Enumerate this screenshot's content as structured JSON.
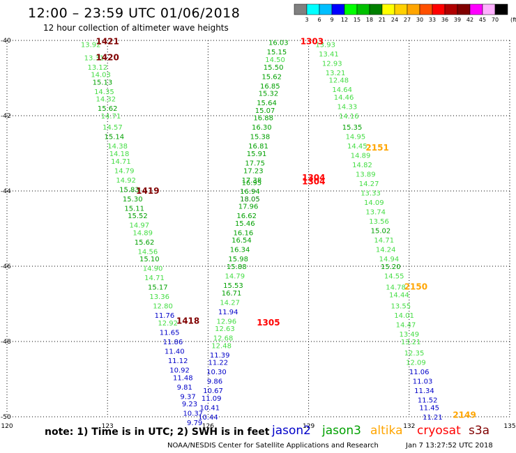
{
  "header": {
    "title": "12:00 – 23:59 UTC 01/06/2018",
    "subtitle": "12 hour collection of altimeter wave heights"
  },
  "colorbar": {
    "levels": [
      "3",
      "6",
      "9",
      "12",
      "15",
      "18",
      "21",
      "24",
      "27",
      "30",
      "33",
      "36",
      "39",
      "42",
      "45",
      "70"
    ],
    "unit": "(ft)",
    "colors": [
      "#808080",
      "#00ffff",
      "#00bfff",
      "#0000ff",
      "#00ff00",
      "#00c000",
      "#008000",
      "#ffff00",
      "#ffd000",
      "#ffa500",
      "#ff5000",
      "#ff0000",
      "#b00000",
      "#800000",
      "#ff00ff",
      "#ffb0ff",
      "#000000"
    ]
  },
  "legend": [
    {
      "name": "jason2",
      "color": "#0000c8"
    },
    {
      "name": "jason3",
      "color": "#00a000"
    },
    {
      "name": "altika",
      "color": "#ffa500"
    },
    {
      "name": "cryosat",
      "color": "#ff0000"
    },
    {
      "name": "s3a",
      "color": "#800000"
    }
  ],
  "footer": {
    "note": "note:  1) Time is in UTC;  2) SWH is in feet",
    "credit": "NOAA/NESDIS Center for Satellite Applications and Research",
    "timestamp": "Jan  7 13:27:52 UTC 2018"
  },
  "chart_data": {
    "type": "scatter",
    "title": "12:00 – 23:59 UTC 01/06/2018",
    "xlim": [
      120,
      135
    ],
    "ylim": [
      -50,
      -40
    ],
    "xticks": [
      120,
      123,
      126,
      129,
      132,
      135
    ],
    "yticks": [
      -40,
      -42,
      -44,
      -46,
      -48,
      -50
    ],
    "grid": true,
    "point_colors": {
      "3": "#808080",
      "6": "#00e0e0",
      "9": "#00bfff",
      "12": "#0000c8",
      "15": "#44dd44",
      "18": "#00a000",
      "21": "#008000"
    },
    "time_labels": [
      {
        "text": "1421",
        "lon": 123.0,
        "lat": -40.03,
        "sat": "s3a"
      },
      {
        "text": "1420",
        "lon": 123.0,
        "lat": -40.45,
        "sat": "s3a"
      },
      {
        "text": "1419",
        "lon": 124.2,
        "lat": -44.0,
        "sat": "s3a"
      },
      {
        "text": "1418",
        "lon": 125.4,
        "lat": -47.45,
        "sat": "s3a"
      },
      {
        "text": "1303",
        "lon": 129.1,
        "lat": -40.03,
        "sat": "cryosat"
      },
      {
        "text": "1304",
        "lon": 129.15,
        "lat": -43.65,
        "sat": "cryosat"
      },
      {
        "text": "1304",
        "lon": 129.15,
        "lat": -43.75,
        "sat": "cryosat"
      },
      {
        "text": "1305",
        "lon": 127.8,
        "lat": -47.5,
        "sat": "cryosat"
      },
      {
        "text": "2151",
        "lon": 131.05,
        "lat": -42.85,
        "sat": "altika"
      },
      {
        "text": "2150",
        "lon": 132.2,
        "lat": -46.55,
        "sat": "altika"
      },
      {
        "text": "2149",
        "lon": 133.65,
        "lat": -49.95,
        "sat": "altika"
      }
    ],
    "series": [
      {
        "name": "s3a",
        "points": [
          {
            "lon": 122.5,
            "lat": -40.1,
            "v": "13.92"
          },
          {
            "lon": 122.6,
            "lat": -40.45,
            "v": "13.31"
          },
          {
            "lon": 122.7,
            "lat": -40.7,
            "v": "13.12"
          },
          {
            "lon": 122.8,
            "lat": -40.9,
            "v": "14.03"
          },
          {
            "lon": 122.85,
            "lat": -41.1,
            "v": "15.13"
          },
          {
            "lon": 122.9,
            "lat": -41.35,
            "v": "14.35"
          },
          {
            "lon": 122.95,
            "lat": -41.55,
            "v": "14.32"
          },
          {
            "lon": 123.0,
            "lat": -41.8,
            "v": "15.62"
          },
          {
            "lon": 123.1,
            "lat": -42.0,
            "v": "14.71"
          },
          {
            "lon": 123.15,
            "lat": -42.3,
            "v": "14.57"
          },
          {
            "lon": 123.2,
            "lat": -42.55,
            "v": "15.14"
          },
          {
            "lon": 123.3,
            "lat": -42.8,
            "v": "14.38"
          },
          {
            "lon": 123.35,
            "lat": -43.0,
            "v": "14.18"
          },
          {
            "lon": 123.4,
            "lat": -43.2,
            "v": "14.71"
          },
          {
            "lon": 123.5,
            "lat": -43.45,
            "v": "14.79"
          },
          {
            "lon": 123.55,
            "lat": -43.7,
            "v": "14.92"
          },
          {
            "lon": 123.65,
            "lat": -43.95,
            "v": "15.83"
          },
          {
            "lon": 123.75,
            "lat": -44.2,
            "v": "15.30"
          },
          {
            "lon": 123.8,
            "lat": -44.45,
            "v": "15.11"
          },
          {
            "lon": 123.9,
            "lat": -44.65,
            "v": "15.52"
          },
          {
            "lon": 123.95,
            "lat": -44.9,
            "v": "14.97"
          },
          {
            "lon": 124.05,
            "lat": -45.1,
            "v": "14.89"
          },
          {
            "lon": 124.1,
            "lat": -45.35,
            "v": "15.62"
          },
          {
            "lon": 124.2,
            "lat": -45.6,
            "v": "14.56"
          },
          {
            "lon": 124.25,
            "lat": -45.8,
            "v": "15.10"
          },
          {
            "lon": 124.35,
            "lat": -46.05,
            "v": "14.90"
          },
          {
            "lon": 124.4,
            "lat": -46.3,
            "v": "14.71"
          },
          {
            "lon": 124.5,
            "lat": -46.55,
            "v": "15.17"
          },
          {
            "lon": 124.55,
            "lat": -46.8,
            "v": "13.36"
          },
          {
            "lon": 124.65,
            "lat": -47.05,
            "v": "12.80"
          },
          {
            "lon": 124.7,
            "lat": -47.3,
            "v": "11.76"
          },
          {
            "lon": 124.8,
            "lat": -47.5,
            "v": "12.92"
          },
          {
            "lon": 124.85,
            "lat": -47.75,
            "v": "11.65"
          },
          {
            "lon": 124.95,
            "lat": -48.0,
            "v": "11.86"
          },
          {
            "lon": 125.0,
            "lat": -48.25,
            "v": "11.40"
          },
          {
            "lon": 125.1,
            "lat": -48.5,
            "v": "11.12"
          },
          {
            "lon": 125.15,
            "lat": -48.75,
            "v": "10.92"
          },
          {
            "lon": 125.25,
            "lat": -48.95,
            "v": "11.48"
          },
          {
            "lon": 125.3,
            "lat": -49.2,
            "v": "9.81"
          },
          {
            "lon": 125.4,
            "lat": -49.45,
            "v": "9.37"
          },
          {
            "lon": 125.45,
            "lat": -49.65,
            "v": "9.23"
          },
          {
            "lon": 125.55,
            "lat": -49.9,
            "v": "10.37"
          },
          {
            "lon": 125.6,
            "lat": -50.15,
            "v": "9.79"
          }
        ]
      },
      {
        "name": "cryosat",
        "points": [
          {
            "lon": 128.1,
            "lat": -40.05,
            "v": "16.03"
          },
          {
            "lon": 128.05,
            "lat": -40.3,
            "v": "15.15"
          },
          {
            "lon": 128.0,
            "lat": -40.5,
            "v": "14.50"
          },
          {
            "lon": 127.95,
            "lat": -40.7,
            "v": "15.50"
          },
          {
            "lon": 127.9,
            "lat": -40.95,
            "v": "15.62"
          },
          {
            "lon": 127.85,
            "lat": -41.2,
            "v": "16.85"
          },
          {
            "lon": 127.8,
            "lat": -41.4,
            "v": "15.32"
          },
          {
            "lon": 127.75,
            "lat": -41.65,
            "v": "15.64"
          },
          {
            "lon": 127.7,
            "lat": -41.85,
            "v": "15.07"
          },
          {
            "lon": 127.65,
            "lat": -42.05,
            "v": "16.88"
          },
          {
            "lon": 127.6,
            "lat": -42.3,
            "v": "16.30"
          },
          {
            "lon": 127.55,
            "lat": -42.55,
            "v": "15.38"
          },
          {
            "lon": 127.5,
            "lat": -42.8,
            "v": "16.81"
          },
          {
            "lon": 127.45,
            "lat": -43.0,
            "v": "15.91"
          },
          {
            "lon": 127.4,
            "lat": -43.25,
            "v": "17.75"
          },
          {
            "lon": 127.35,
            "lat": -43.45,
            "v": "17.23"
          },
          {
            "lon": 127.3,
            "lat": -43.7,
            "v": "17.38"
          },
          {
            "lon": 127.3,
            "lat": -43.77,
            "v": "16.95"
          },
          {
            "lon": 127.25,
            "lat": -44.0,
            "v": "16.94"
          },
          {
            "lon": 127.25,
            "lat": -44.2,
            "v": "18.05"
          },
          {
            "lon": 127.2,
            "lat": -44.4,
            "v": "17.96"
          },
          {
            "lon": 127.15,
            "lat": -44.65,
            "v": "16.62"
          },
          {
            "lon": 127.1,
            "lat": -44.85,
            "v": "15.46"
          },
          {
            "lon": 127.05,
            "lat": -45.1,
            "v": "16.16"
          },
          {
            "lon": 127.0,
            "lat": -45.3,
            "v": "16.54"
          },
          {
            "lon": 126.95,
            "lat": -45.55,
            "v": "16.34"
          },
          {
            "lon": 126.9,
            "lat": -45.8,
            "v": "15.98"
          },
          {
            "lon": 126.85,
            "lat": -46.0,
            "v": "15.88"
          },
          {
            "lon": 126.8,
            "lat": -46.25,
            "v": "14.79"
          },
          {
            "lon": 126.75,
            "lat": -46.5,
            "v": "15.53"
          },
          {
            "lon": 126.7,
            "lat": -46.7,
            "v": "16.71"
          },
          {
            "lon": 126.65,
            "lat": -46.95,
            "v": "14.27"
          },
          {
            "lon": 126.6,
            "lat": -47.2,
            "v": "11.94"
          },
          {
            "lon": 126.55,
            "lat": -47.45,
            "v": "12.96"
          },
          {
            "lon": 126.5,
            "lat": -47.65,
            "v": "12.63"
          },
          {
            "lon": 126.45,
            "lat": -47.9,
            "v": "12.68"
          },
          {
            "lon": 126.4,
            "lat": -48.1,
            "v": "12.48"
          },
          {
            "lon": 126.35,
            "lat": -48.35,
            "v": "11.39"
          },
          {
            "lon": 126.3,
            "lat": -48.55,
            "v": "11.22"
          },
          {
            "lon": 126.25,
            "lat": -48.8,
            "v": "10.30"
          },
          {
            "lon": 126.2,
            "lat": -49.05,
            "v": "9.86"
          },
          {
            "lon": 126.15,
            "lat": -49.3,
            "v": "10.67"
          },
          {
            "lon": 126.1,
            "lat": -49.5,
            "v": "11.09"
          },
          {
            "lon": 126.05,
            "lat": -49.75,
            "v": "10.41"
          },
          {
            "lon": 126.0,
            "lat": -50.0,
            "v": "10.44"
          }
        ]
      },
      {
        "name": "altika",
        "points": [
          {
            "lon": 129.5,
            "lat": -40.1,
            "v": "13.93"
          },
          {
            "lon": 129.6,
            "lat": -40.35,
            "v": "13.41"
          },
          {
            "lon": 129.7,
            "lat": -40.6,
            "v": "12.93"
          },
          {
            "lon": 129.8,
            "lat": -40.85,
            "v": "13.21"
          },
          {
            "lon": 129.9,
            "lat": -41.05,
            "v": "12.48"
          },
          {
            "lon": 130.0,
            "lat": -41.3,
            "v": "14.64"
          },
          {
            "lon": 130.05,
            "lat": -41.5,
            "v": "14.46"
          },
          {
            "lon": 130.15,
            "lat": -41.75,
            "v": "14.33"
          },
          {
            "lon": 130.2,
            "lat": -42.0,
            "v": "14.16"
          },
          {
            "lon": 130.3,
            "lat": -42.3,
            "v": "15.35"
          },
          {
            "lon": 130.4,
            "lat": -42.55,
            "v": "14.95"
          },
          {
            "lon": 130.45,
            "lat": -42.8,
            "v": "14.45"
          },
          {
            "lon": 130.55,
            "lat": -43.05,
            "v": "14.89"
          },
          {
            "lon": 130.6,
            "lat": -43.3,
            "v": "14.82"
          },
          {
            "lon": 130.7,
            "lat": -43.55,
            "v": "13.89"
          },
          {
            "lon": 130.8,
            "lat": -43.8,
            "v": "14.27"
          },
          {
            "lon": 130.85,
            "lat": -44.05,
            "v": "13.33"
          },
          {
            "lon": 130.95,
            "lat": -44.3,
            "v": "14.09"
          },
          {
            "lon": 131.0,
            "lat": -44.55,
            "v": "13.74"
          },
          {
            "lon": 131.1,
            "lat": -44.8,
            "v": "13.56"
          },
          {
            "lon": 131.15,
            "lat": -45.05,
            "v": "15.02"
          },
          {
            "lon": 131.25,
            "lat": -45.3,
            "v": "14.71"
          },
          {
            "lon": 131.3,
            "lat": -45.55,
            "v": "14.24"
          },
          {
            "lon": 131.4,
            "lat": -45.8,
            "v": "14.94"
          },
          {
            "lon": 131.45,
            "lat": -46.0,
            "v": "15.20"
          },
          {
            "lon": 131.55,
            "lat": -46.25,
            "v": "14.55"
          },
          {
            "lon": 131.6,
            "lat": -46.55,
            "v": "14.78"
          },
          {
            "lon": 131.7,
            "lat": -46.75,
            "v": "14.44"
          },
          {
            "lon": 131.75,
            "lat": -47.05,
            "v": "13.55"
          },
          {
            "lon": 131.85,
            "lat": -47.3,
            "v": "14.01"
          },
          {
            "lon": 131.9,
            "lat": -47.55,
            "v": "14.47"
          },
          {
            "lon": 132.0,
            "lat": -47.8,
            "v": "13.49"
          },
          {
            "lon": 132.05,
            "lat": -48.0,
            "v": "13.21"
          },
          {
            "lon": 132.15,
            "lat": -48.3,
            "v": "12.35"
          },
          {
            "lon": 132.2,
            "lat": -48.55,
            "v": "12.09"
          },
          {
            "lon": 132.3,
            "lat": -48.8,
            "v": "11.06"
          },
          {
            "lon": 132.4,
            "lat": -49.05,
            "v": "11.03"
          },
          {
            "lon": 132.45,
            "lat": -49.3,
            "v": "11.34"
          },
          {
            "lon": 132.55,
            "lat": -49.55,
            "v": "11.52"
          },
          {
            "lon": 132.6,
            "lat": -49.75,
            "v": "11.45"
          },
          {
            "lon": 132.7,
            "lat": -50.0,
            "v": "11.21"
          }
        ]
      }
    ]
  }
}
